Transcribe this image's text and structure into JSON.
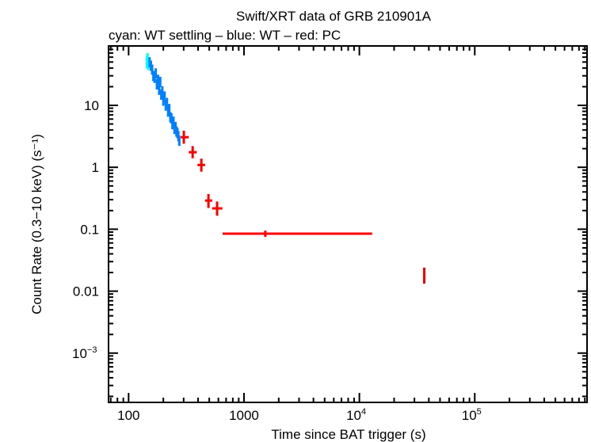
{
  "chart_data": {
    "type": "scatter",
    "title": "Swift/XRT data of GRB 210901A",
    "subtitle": "cyan: WT settling – blue: WT – red: PC",
    "xlabel": "Time since BAT trigger (s)",
    "ylabel": "Count Rate (0.3−10 keV) (s⁻¹)",
    "xscale": "log",
    "yscale": "log",
    "xlim": [
      67,
      940000
    ],
    "ylim": [
      0.00016,
      91
    ],
    "grid": false,
    "x_ticks": [
      {
        "value": 100,
        "label": "100"
      },
      {
        "value": 1000,
        "label": "1000"
      },
      {
        "value": 10000,
        "label": "10",
        "sup": "4"
      },
      {
        "value": 100000,
        "label": "10",
        "sup": "5"
      }
    ],
    "y_ticks": [
      {
        "value": 10,
        "label": "10"
      },
      {
        "value": 1,
        "label": "1"
      },
      {
        "value": 0.1,
        "label": "0.1"
      },
      {
        "value": 0.01,
        "label": "0.01"
      },
      {
        "value": 0.001,
        "label": "10",
        "sup": "−3"
      }
    ],
    "series": [
      {
        "mode": "WT settling",
        "color": "#00ffff",
        "points": [
          {
            "t": 144,
            "t_lo": 143,
            "t_hi": 145,
            "r": 50,
            "r_lo": 40,
            "r_hi": 62
          },
          {
            "t": 146,
            "t_lo": 145,
            "t_hi": 147,
            "r": 58,
            "r_lo": 47,
            "r_hi": 70
          },
          {
            "t": 148,
            "t_lo": 147,
            "t_hi": 149,
            "r": 45,
            "r_lo": 37,
            "r_hi": 55
          }
        ]
      },
      {
        "mode": "WT",
        "color": "#0080ff",
        "points": [
          {
            "t": 152,
            "r": 50
          },
          {
            "t": 156,
            "r": 44
          },
          {
            "t": 160,
            "r": 38
          },
          {
            "t": 164,
            "r": 30
          },
          {
            "t": 168,
            "r": 28
          },
          {
            "t": 172,
            "r": 33
          },
          {
            "t": 176,
            "r": 22
          },
          {
            "t": 180,
            "r": 26
          },
          {
            "t": 184,
            "r": 18
          },
          {
            "t": 188,
            "r": 24
          },
          {
            "t": 192,
            "r": 15
          },
          {
            "t": 196,
            "r": 17
          },
          {
            "t": 200,
            "r": 12
          },
          {
            "t": 205,
            "r": 14
          },
          {
            "t": 210,
            "r": 10
          },
          {
            "t": 215,
            "r": 11
          },
          {
            "t": 220,
            "r": 8
          },
          {
            "t": 225,
            "r": 8.8
          },
          {
            "t": 230,
            "r": 6.5
          },
          {
            "t": 235,
            "r": 6.2
          },
          {
            "t": 240,
            "r": 5.0
          },
          {
            "t": 245,
            "r": 5.5
          },
          {
            "t": 250,
            "r": 4.2
          },
          {
            "t": 255,
            "r": 4.5
          },
          {
            "t": 260,
            "r": 3.8
          },
          {
            "t": 265,
            "r": 3.6
          },
          {
            "t": 270,
            "r": 3.2
          },
          {
            "t": 275,
            "r": 2.7
          }
        ]
      },
      {
        "mode": "PC",
        "color": "#ff0000",
        "points": [
          {
            "t": 301,
            "t_lo": 283,
            "t_hi": 332,
            "r": 3.06,
            "r_lo": 2.4,
            "r_hi": 3.9
          },
          {
            "t": 359,
            "t_lo": 332,
            "t_hi": 390,
            "r": 1.75,
            "r_lo": 1.4,
            "r_hi": 2.2
          },
          {
            "t": 427,
            "t_lo": 395,
            "t_hi": 460,
            "r": 1.09,
            "r_lo": 0.85,
            "r_hi": 1.38
          },
          {
            "t": 492,
            "t_lo": 460,
            "t_hi": 530,
            "r": 0.29,
            "r_lo": 0.22,
            "r_hi": 0.37
          },
          {
            "t": 585,
            "t_lo": 530,
            "t_hi": 650,
            "r": 0.217,
            "r_lo": 0.165,
            "r_hi": 0.28
          },
          {
            "t": 1530,
            "t_lo": 653,
            "t_hi": 12900,
            "r": 0.0846,
            "r_lo": 0.075,
            "r_hi": 0.095
          },
          {
            "t": 36500,
            "t_lo": 36000,
            "t_hi": 37000,
            "r": 0.0178,
            "r_lo": 0.0132,
            "r_hi": 0.024
          }
        ]
      }
    ]
  }
}
